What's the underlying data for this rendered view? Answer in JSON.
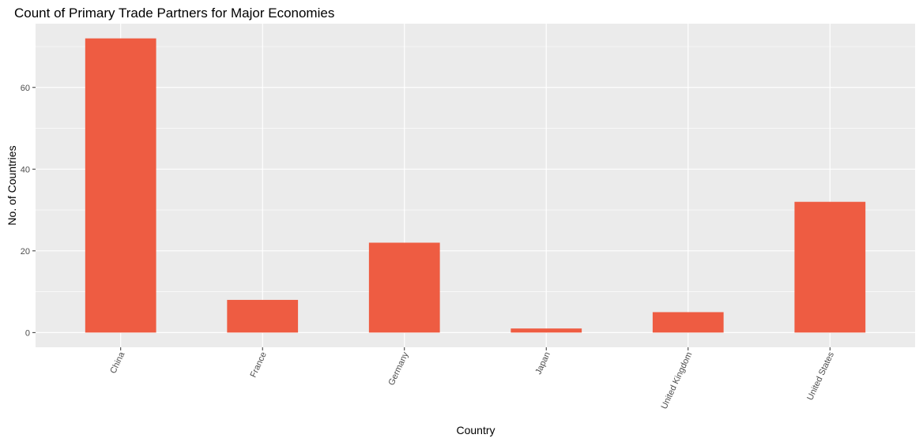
{
  "chart_data": {
    "type": "bar",
    "title": "Count of Primary Trade Partners for Major Economies",
    "xlabel": "Country",
    "ylabel": "No. of Countries",
    "categories": [
      "China",
      "France",
      "Germany",
      "Japan",
      "United Kingdom",
      "United States"
    ],
    "values": [
      72,
      8,
      22,
      1,
      5,
      32
    ],
    "ylim": [
      -3.6,
      75.6
    ],
    "yticks": [
      0,
      20,
      40,
      60
    ],
    "grid": true,
    "legend": "none",
    "colors": {
      "bar": "#EE5C42",
      "panel": "#EBEBEB",
      "grid": "#FFFFFF",
      "tick_text": "#4D4D4D",
      "tick_mark": "#333333"
    }
  }
}
